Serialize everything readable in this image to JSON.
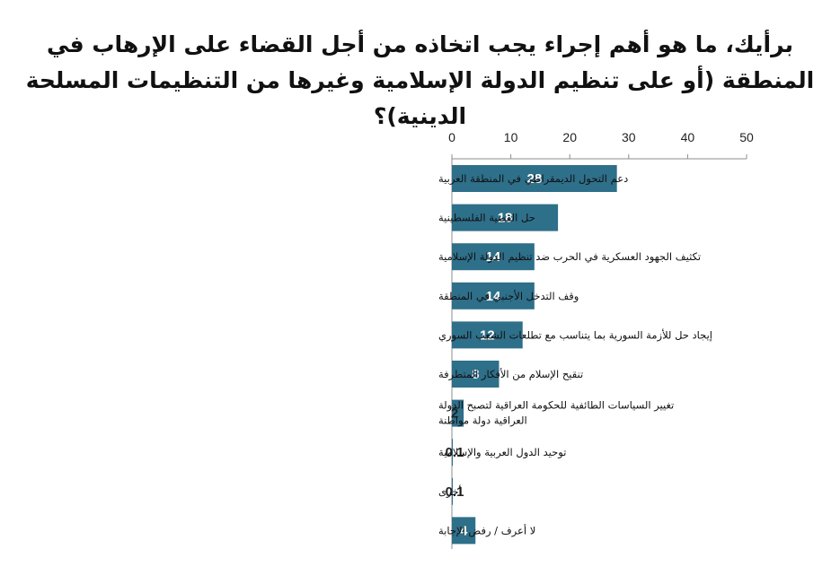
{
  "chart_data": {
    "type": "bar",
    "orientation": "horizontal",
    "title": "برأيك، ما هو أهم إجراء يجب اتخاذه من أجل القضاء على الإرهاب في المنطقة (أو على تنظيم الدولة الإسلامية وغيرها من التنظيمات المسلحة الدينية)؟",
    "categories": [
      "دعم التحول الديمقراطي في المنطقة العربية",
      "حل القضية الفلسطينية",
      "تكثيف الجهود العسكرية في الحرب ضد تنظيم الدولة الإسلامية",
      "وقف التدخل الأجنبي في المنطقة",
      "إيجاد حل للأزمة السورية بما يتناسب مع تطلعات الشعب السوري",
      "تنقيح الإسلام من الأفكار المتطرفة",
      [
        "تغيير السياسات الطائفية للحكومة العراقية لتصبح الدولة",
        "العراقية دولة مواطنة"
      ],
      "توحيد الدول العربية والإسلامية",
      "أخرى",
      "لا أعرف / رفض الإجابة"
    ],
    "values": [
      28,
      18,
      14,
      14,
      12,
      8,
      2,
      0.1,
      0.1,
      4
    ],
    "value_labels": [
      "28",
      "18",
      "14",
      "14",
      "12",
      "8",
      "2",
      "0.1",
      "0.1",
      "4"
    ],
    "xlim": [
      0,
      50
    ],
    "xticks": [
      0,
      10,
      20,
      30,
      40,
      50
    ],
    "xaxis_position": "top",
    "grid": false,
    "legend": "none",
    "bar_color": "#2e6f8a",
    "label_color": "#ffffff"
  }
}
